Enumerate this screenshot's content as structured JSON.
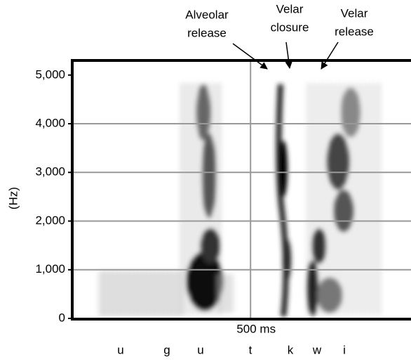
{
  "chart_data": {
    "type": "spectrogram",
    "ylabel": "(Hz)",
    "ylim": [
      0,
      5300
    ],
    "yticks": [
      0,
      {
        "value": 1000,
        "label": "1,000"
      },
      {
        "value": 2000,
        "label": "2,000"
      },
      {
        "value": 3000,
        "label": "3,000"
      },
      {
        "value": 4000,
        "label": "4,000"
      },
      {
        "value": 5000,
        "label": "5,000"
      }
    ],
    "xlim": [
      0,
      950
    ],
    "xticks": [
      {
        "value": 500,
        "label": "500 ms"
      }
    ],
    "grid": true,
    "segments": [
      "u",
      "g",
      "u",
      "t",
      "k",
      "w",
      "i"
    ],
    "annotations": [
      {
        "lines": [
          "Alveolar",
          "release"
        ]
      },
      {
        "lines": [
          "Velar",
          "closure"
        ]
      },
      {
        "lines": [
          "Velar",
          "release"
        ]
      }
    ]
  }
}
